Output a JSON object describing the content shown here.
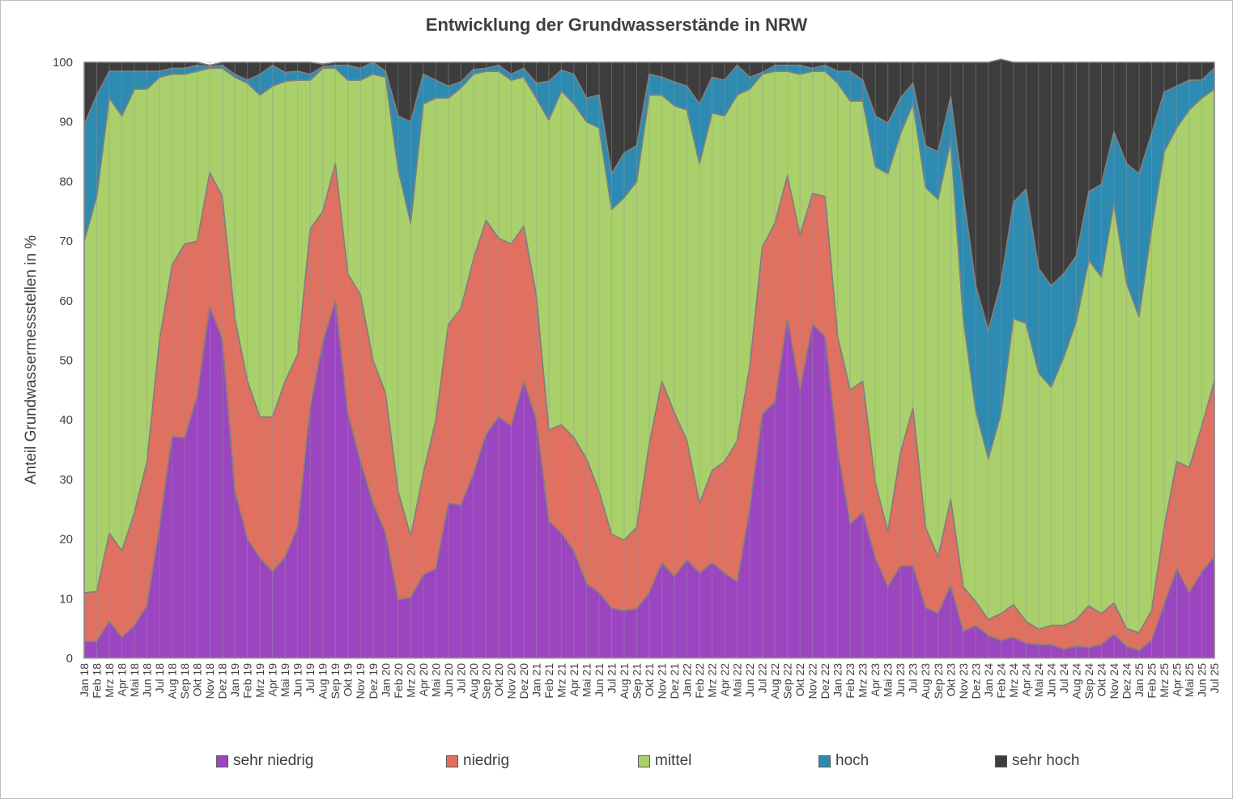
{
  "chart_data": {
    "type": "area",
    "stacked": true,
    "title": "Entwicklung der Grundwasserstände in NRW",
    "ylabel": "Anteil Grundwassermessstellen in %",
    "xlabel": "",
    "ylim": [
      0,
      100
    ],
    "yticks": [
      0,
      10,
      20,
      30,
      40,
      50,
      60,
      70,
      80,
      90,
      100
    ],
    "grid": true,
    "legend_position": "bottom",
    "categories": [
      "Jan 18",
      "Feb 18",
      "Mrz 18",
      "Apr 18",
      "Mai 18",
      "Jun 18",
      "Jul 18",
      "Aug 18",
      "Sep 18",
      "Okt 18",
      "Nov 18",
      "Dez 18",
      "Jan 19",
      "Feb 19",
      "Mrz 19",
      "Apr 19",
      "Mai 19",
      "Jun 19",
      "Jul 19",
      "Aug 19",
      "Sep 19",
      "Okt 19",
      "Nov 19",
      "Dez 19",
      "Jan 20",
      "Feb 20",
      "Mrz 20",
      "Apr 20",
      "Mai 20",
      "Jun 20",
      "Jul 20",
      "Aug 20",
      "Sep 20",
      "Okt 20",
      "Nov 20",
      "Dez 20",
      "Jan 21",
      "Feb 21",
      "Mrz 21",
      "Apr 21",
      "Mai 21",
      "Jun 21",
      "Jul 21",
      "Aug 21",
      "Sep 21",
      "Okt 21",
      "Nov 21",
      "Dez 21",
      "Jan 22",
      "Feb 22",
      "Mrz 22",
      "Apr 22",
      "Mai 22",
      "Jun 22",
      "Jul 22",
      "Aug 22",
      "Sep 22",
      "Okt 22",
      "Nov 22",
      "Dez 22",
      "Jan 23",
      "Feb 23",
      "Mrz 23",
      "Apr 23",
      "Mai 23",
      "Jun 23",
      "Jul 23",
      "Aug 23",
      "Sep 23",
      "Okt 23",
      "Nov 23",
      "Dez 23",
      "Jan 24",
      "Feb 24",
      "Mrz 24",
      "Apr 24",
      "Mai 24",
      "Jun 24",
      "Jul 24",
      "Aug 24",
      "Sep 24",
      "Okt 24",
      "Nov 24",
      "Dez 24",
      "Jan 25",
      "Feb 25",
      "Mrz 25",
      "Apr 25",
      "Mai 25",
      "Jun 25",
      "Jul 25"
    ],
    "series": [
      {
        "name": "sehr niedrig",
        "color": "#9b45c0",
        "values": [
          2.8,
          2.8,
          6.2,
          3.5,
          5.5,
          8.8,
          22.0,
          37.2,
          37.0,
          44.0,
          59.0,
          53.5,
          28.0,
          20.0,
          16.8,
          14.5,
          17.0,
          22.0,
          42.0,
          53.0,
          60.0,
          41.0,
          33.0,
          26.0,
          21.0,
          9.8,
          10.2,
          14.0,
          15.0,
          26.0,
          25.7,
          31.0,
          37.5,
          40.5,
          39.0,
          46.5,
          40.0,
          23.0,
          21.0,
          18.0,
          12.5,
          11.0,
          8.4,
          8.0,
          8.3,
          11.0,
          16.0,
          13.7,
          16.5,
          14.3,
          16.0,
          14.3,
          12.8,
          25.0,
          41.0,
          43.0,
          57.0,
          45.0,
          56.0,
          54.0,
          35.0,
          22.5,
          24.5,
          16.8,
          12.0,
          15.5,
          15.5,
          8.5,
          7.5,
          12.2,
          4.5,
          5.5,
          3.8,
          3.0,
          3.5,
          2.5,
          2.3,
          2.3,
          1.5,
          2.0,
          1.8,
          2.3,
          4.0,
          2.0,
          1.3,
          3.0,
          9.0,
          15.0,
          11.0,
          14.5,
          17.0
        ]
      },
      {
        "name": "niedrig",
        "color": "#e07060",
        "values": [
          8.2,
          8.4,
          14.8,
          14.5,
          19.0,
          24.2,
          31.5,
          28.8,
          32.5,
          26.0,
          22.5,
          24.0,
          29.0,
          26.5,
          23.7,
          26.0,
          29.5,
          29.0,
          30.0,
          22.0,
          23.0,
          23.5,
          28.0,
          24.0,
          23.5,
          18.2,
          10.3,
          17.0,
          25.0,
          30.0,
          33.0,
          36.0,
          36.0,
          30.0,
          30.5,
          26.0,
          21.0,
          15.3,
          18.2,
          19.0,
          21.0,
          17.0,
          12.4,
          11.8,
          13.7,
          25.0,
          30.5,
          27.5,
          20.0,
          11.7,
          15.5,
          18.7,
          23.7,
          24.0,
          28.0,
          30.0,
          24.0,
          26.0,
          22.0,
          23.5,
          19.0,
          22.5,
          22.0,
          12.7,
          9.3,
          19.0,
          26.5,
          13.5,
          9.5,
          14.5,
          7.5,
          4.0,
          2.7,
          4.5,
          5.5,
          3.7,
          2.6,
          3.2,
          4.0,
          4.5,
          7.0,
          5.2,
          5.3,
          3.0,
          3.0,
          5.0,
          13.0,
          18.0,
          21.0,
          24.5,
          29.5
        ]
      },
      {
        "name": "mittel",
        "color": "#a9d06b",
        "values": [
          59.0,
          66.3,
          73.0,
          73.0,
          71.0,
          62.5,
          44.0,
          32.0,
          28.5,
          28.5,
          17.5,
          21.5,
          40.5,
          50.0,
          54.0,
          55.5,
          50.3,
          46.0,
          25.0,
          24.0,
          16.0,
          32.5,
          36.0,
          48.0,
          53.0,
          54.0,
          52.5,
          62.0,
          54.0,
          38.0,
          37.0,
          31.0,
          25.0,
          28.0,
          27.5,
          25.0,
          33.0,
          52.0,
          56.0,
          56.0,
          56.5,
          61.0,
          54.5,
          57.5,
          58.0,
          58.5,
          48.0,
          51.5,
          55.5,
          57.0,
          60.0,
          58.0,
          58.0,
          46.5,
          29.0,
          25.5,
          17.5,
          27.0,
          20.5,
          21.0,
          42.5,
          48.5,
          47.0,
          53.0,
          60.0,
          53.5,
          51.0,
          57.0,
          60.0,
          60.0,
          45.0,
          32.0,
          27.0,
          33.5,
          48.0,
          50.0,
          43.0,
          40.0,
          45.0,
          50.0,
          58.0,
          56.5,
          67.0,
          58.0,
          53.0,
          64.0,
          63.0,
          56.0,
          60.0,
          55.0,
          49.0
        ]
      },
      {
        "name": "hoch",
        "color": "#2d8bb2",
        "values": [
          19.5,
          17.0,
          4.5,
          7.5,
          3.0,
          3.0,
          1.0,
          1.0,
          1.0,
          1.0,
          0.3,
          0.5,
          0.5,
          0.5,
          3.5,
          3.5,
          1.5,
          1.5,
          1.0,
          0.3,
          0.5,
          2.5,
          2.0,
          2.0,
          1.0,
          9.0,
          17.0,
          5.0,
          3.0,
          2.0,
          1.0,
          0.8,
          0.5,
          1.0,
          1.0,
          1.5,
          2.5,
          6.5,
          3.5,
          5.0,
          4.0,
          5.5,
          6.0,
          7.5,
          6.0,
          3.5,
          3.0,
          4.0,
          4.0,
          10.0,
          6.0,
          6.0,
          5.0,
          2.0,
          0.3,
          1.0,
          1.0,
          1.5,
          0.5,
          1.0,
          2.0,
          5.0,
          3.5,
          8.5,
          8.5,
          6.0,
          3.5,
          7.0,
          8.0,
          7.5,
          21.0,
          21.0,
          21.5,
          22.0,
          19.5,
          22.5,
          17.5,
          17.0,
          14.0,
          11.0,
          11.5,
          15.5,
          12.0,
          20.0,
          24.0,
          16.0,
          10.0,
          7.0,
          5.0,
          3.0,
          3.5
        ]
      },
      {
        "name": "sehr hoch",
        "color": "#3d3d3d",
        "values": [
          10.5,
          5.5,
          1.5,
          1.5,
          1.5,
          1.5,
          1.5,
          1.0,
          1.0,
          0.5,
          0.2,
          0.5,
          2.0,
          3.0,
          2.0,
          0.5,
          1.7,
          1.5,
          2.0,
          0.4,
          0.5,
          0.5,
          1.0,
          0.0,
          1.5,
          9.0,
          10.0,
          2.0,
          3.0,
          4.0,
          3.3,
          1.2,
          1.0,
          0.5,
          2.0,
          1.0,
          3.5,
          3.2,
          1.3,
          2.0,
          6.0,
          5.5,
          18.7,
          15.2,
          14.0,
          2.0,
          2.5,
          3.3,
          4.0,
          7.0,
          2.5,
          3.0,
          0.5,
          2.5,
          1.7,
          0.5,
          0.5,
          0.5,
          1.0,
          0.5,
          1.5,
          1.5,
          3.0,
          9.0,
          10.2,
          6.0,
          3.5,
          14.0,
          15.0,
          5.8,
          22.0,
          37.5,
          45.0,
          37.5,
          23.5,
          21.3,
          34.6,
          37.5,
          35.5,
          32.5,
          21.7,
          20.5,
          11.7,
          17.0,
          18.7,
          12.0,
          5.0,
          4.0,
          3.0,
          3.0,
          1.0
        ]
      }
    ]
  }
}
